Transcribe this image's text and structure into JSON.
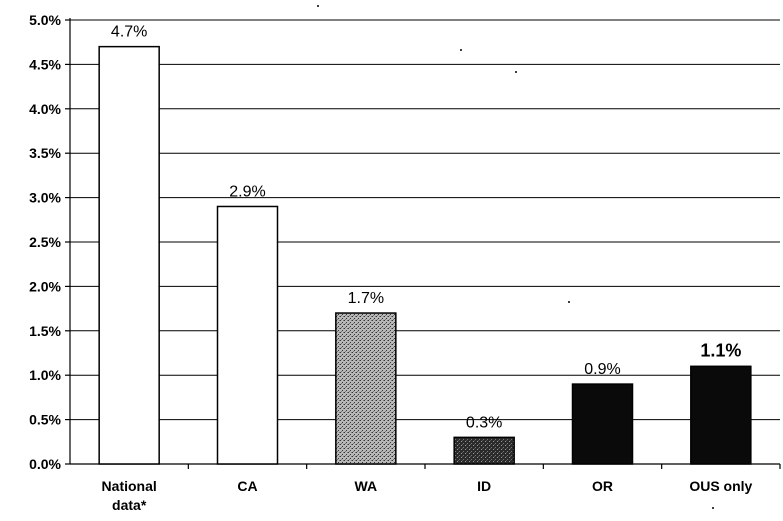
{
  "chart_data": {
    "type": "bar",
    "title": "",
    "xlabel": "",
    "ylabel": "",
    "ylim": [
      0,
      5.0
    ],
    "y_tick_step": 0.5,
    "y_tick_labels": [
      "0.0%",
      "0.5%",
      "1.0%",
      "1.5%",
      "2.0%",
      "2.5%",
      "3.0%",
      "3.5%",
      "4.0%",
      "4.5%",
      "5.0%"
    ],
    "grid": true,
    "legend": "none",
    "categories": [
      "National data*",
      "CA",
      "WA",
      "ID",
      "OR",
      "OUS only"
    ],
    "category_lines": [
      [
        "National",
        "data*"
      ],
      [
        "CA"
      ],
      [
        "WA"
      ],
      [
        "ID"
      ],
      [
        "OR"
      ],
      [
        "OUS only"
      ]
    ],
    "values": [
      4.7,
      2.9,
      1.7,
      0.3,
      0.9,
      1.1
    ],
    "data_labels": [
      "4.7%",
      "2.9%",
      "1.7%",
      "0.3%",
      "0.9%",
      "1.1%"
    ],
    "emphasized_labels": [
      5
    ],
    "bar_fills": [
      "white",
      "white",
      "stipple-gray",
      "stipple-dark",
      "black",
      "black"
    ],
    "colors": {
      "white": "#ffffff",
      "stipple-gray": "#8a8a8a",
      "stipple-dark": "#3a3a3a",
      "black": "#0a0a0a",
      "grid": "#000000"
    }
  }
}
